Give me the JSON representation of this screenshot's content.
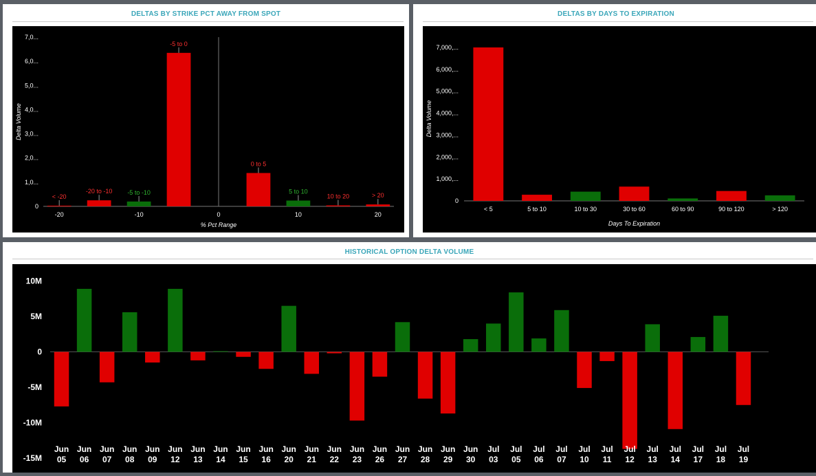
{
  "colors": {
    "positive": "#0a6e0a",
    "negative": "#e00000",
    "panel_title": "#3aa6b9",
    "plot_bg": "#000000"
  },
  "panels": {
    "strike": {
      "title": "DELTAS BY STRIKE PCT AWAY FROM SPOT"
    },
    "expiry": {
      "title": "DELTAS BY DAYS TO EXPIRATION"
    },
    "history": {
      "title": "HISTORICAL OPTION DELTA VOLUME"
    }
  },
  "chart_data": [
    {
      "id": "strike",
      "type": "bar",
      "title": "DELTAS BY STRIKE PCT AWAY FROM SPOT",
      "xlabel": "% Pct Range",
      "ylabel": "Delta Volume",
      "xlim": [
        -22,
        22
      ],
      "ylim": [
        0,
        7000
      ],
      "yticks": [
        0,
        1000,
        2000,
        3000,
        4000,
        5000,
        6000,
        7000
      ],
      "ytick_labels": [
        "0",
        "1,0...",
        "2,0...",
        "3,0...",
        "4,0...",
        "5,0...",
        "6,0...",
        "7,0..."
      ],
      "xticks": [
        -20,
        -10,
        0,
        10,
        20
      ],
      "xtick_labels": [
        "-20",
        "-10",
        "0",
        "10",
        "20"
      ],
      "bars": [
        {
          "label": "< -20",
          "center": -20,
          "width": 3,
          "value": 20,
          "color": "red"
        },
        {
          "label": "-20 to -10",
          "center": -15,
          "width": 3,
          "value": 250,
          "color": "red"
        },
        {
          "label": "-5 to -10",
          "center": -10,
          "width": 3,
          "value": 200,
          "color": "green"
        },
        {
          "label": "-5 to 0",
          "center": -5,
          "width": 3,
          "value": 6350,
          "color": "red"
        },
        {
          "label": "0 to 5",
          "center": 5,
          "width": 3,
          "value": 1380,
          "color": "red"
        },
        {
          "label": "5 to 10",
          "center": 10,
          "width": 3,
          "value": 240,
          "color": "green"
        },
        {
          "label": "10 to 20",
          "center": 15,
          "width": 3,
          "value": 40,
          "color": "red"
        },
        {
          "label": "> 20",
          "center": 20,
          "width": 3,
          "value": 80,
          "color": "red"
        }
      ]
    },
    {
      "id": "expiry",
      "type": "bar",
      "title": "DELTAS BY DAYS TO EXPIRATION",
      "xlabel": "Days To Expiration",
      "ylabel": "Delta Volume",
      "ylim": [
        0,
        7500
      ],
      "yticks": [
        0,
        1000,
        2000,
        3000,
        4000,
        5000,
        6000,
        7000
      ],
      "ytick_labels": [
        "0",
        "1,000,...",
        "2,000,...",
        "3,000,...",
        "4,000,...",
        "5,000,...",
        "6,000,...",
        "7,000,..."
      ],
      "categories": [
        "< 5",
        "5 to 10",
        "10 to 30",
        "30 to 60",
        "60 to 90",
        "90 to 120",
        "> 120"
      ],
      "values": [
        7000,
        280,
        420,
        650,
        110,
        450,
        250
      ],
      "colors": [
        "red",
        "red",
        "green",
        "red",
        "green",
        "red",
        "green"
      ]
    },
    {
      "id": "history",
      "type": "bar",
      "title": "HISTORICAL OPTION DELTA VOLUME",
      "xlabel": "",
      "ylabel": "",
      "ylim": [
        -15000000,
        12000000
      ],
      "yticks": [
        -15000000,
        -10000000,
        -5000000,
        0,
        5000000,
        10000000
      ],
      "ytick_labels": [
        "-15M",
        "-10M",
        "-5M",
        "0",
        "5M",
        "10M"
      ],
      "categories": [
        [
          "Jun",
          "05"
        ],
        [
          "Jun",
          "06"
        ],
        [
          "Jun",
          "07"
        ],
        [
          "Jun",
          "08"
        ],
        [
          "Jun",
          "09"
        ],
        [
          "Jun",
          "12"
        ],
        [
          "Jun",
          "13"
        ],
        [
          "Jun",
          "14"
        ],
        [
          "Jun",
          "15"
        ],
        [
          "Jun",
          "16"
        ],
        [
          "Jun",
          "20"
        ],
        [
          "Jun",
          "21"
        ],
        [
          "Jun",
          "22"
        ],
        [
          "Jun",
          "23"
        ],
        [
          "Jun",
          "26"
        ],
        [
          "Jun",
          "27"
        ],
        [
          "Jun",
          "28"
        ],
        [
          "Jun",
          "29"
        ],
        [
          "Jun",
          "30"
        ],
        [
          "Jul",
          "03"
        ],
        [
          "Jul",
          "05"
        ],
        [
          "Jul",
          "06"
        ],
        [
          "Jul",
          "07"
        ],
        [
          "Jul",
          "10"
        ],
        [
          "Jul",
          "11"
        ],
        [
          "Jul",
          "12"
        ],
        [
          "Jul",
          "13"
        ],
        [
          "Jul",
          "14"
        ],
        [
          "Jul",
          "17"
        ],
        [
          "Jul",
          "18"
        ],
        [
          "Jul",
          "19"
        ]
      ],
      "values": [
        -7700000,
        8900000,
        -4300000,
        5600000,
        -1500000,
        8900000,
        -1200000,
        100000,
        -700000,
        -2400000,
        6500000,
        -3100000,
        -200000,
        -9700000,
        -3500000,
        4200000,
        -6600000,
        -8700000,
        1800000,
        4000000,
        8400000,
        1900000,
        5900000,
        -5100000,
        -1300000,
        -13700000,
        3900000,
        -10900000,
        2100000,
        5100000,
        -7500000
      ]
    }
  ]
}
